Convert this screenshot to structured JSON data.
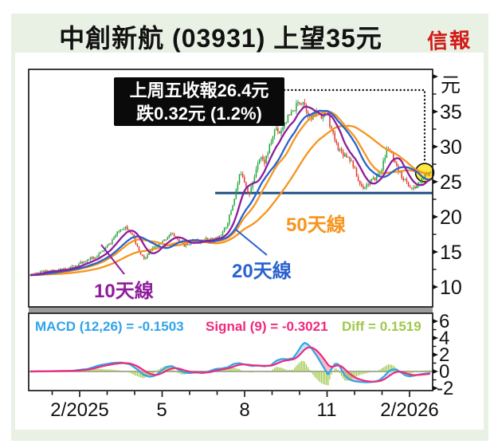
{
  "title": "中創新航 (03931) 上望35元",
  "brand": "信報",
  "annotation": {
    "line1": "上周五收報26.4元",
    "line2": "跌0.32元 (1.2%)"
  },
  "ma_labels": {
    "ma10": "10天線",
    "ma20": "20天線",
    "ma50": "50天線"
  },
  "macd_legend": {
    "macd": "MACD (12,26) = -0.1503",
    "signal": "Signal (9) = -0.3021",
    "diff": "Diff = 0.1519"
  },
  "axes": {
    "price": {
      "unit": "元",
      "ticks": [
        "35",
        "30",
        "25",
        "20",
        "15",
        "10"
      ]
    },
    "macd": {
      "ticks": [
        "6",
        "4",
        "2",
        "0",
        "-2"
      ]
    },
    "x": {
      "ticks": [
        "2/2025",
        "5",
        "8",
        "11",
        "2/2026"
      ]
    }
  },
  "colors": {
    "up": "#22a53c",
    "down": "#e03a2e",
    "ma10": "#8e1d9b",
    "ma20": "#2a62cf",
    "ma50": "#f7941d",
    "support": "#1c4e80",
    "macd_line": "#2fa4ea",
    "signal_line": "#ee2a7b",
    "diff_bar": "#9fc84b",
    "fill_up": "#aee1f7",
    "fill_down": "#f6a8c0",
    "annotation_bg": "#0a0a0a",
    "annotation_text": "#ffffff",
    "page_green": "#e9f1e5",
    "brand_red": "#d11a17",
    "highlight": "#ffe93c",
    "axis": "#111111",
    "gray_bar": "#9b9b9b",
    "zero_line": "#8a8a8a"
  },
  "chart_data": [
    {
      "type": "candlestick",
      "name": "中創新航 03931 日線",
      "y_unit": "元",
      "y_ticks": [
        35,
        30,
        25,
        20,
        15,
        10
      ],
      "x_tick_labels": [
        "2/2025",
        "5",
        "8",
        "11",
        "2/2026"
      ],
      "x_months_start": "2/2025",
      "last": {
        "close": 26.4,
        "change": -0.32,
        "change_pct": -1.2,
        "target": 35
      },
      "support_line": {
        "price": 23.4,
        "start_month": 4.93,
        "end_month": 12.85
      },
      "highlight_marker": {
        "month": 12.55,
        "price": 26.3
      },
      "moving_averages": [
        {
          "window": 10,
          "label": "10天線"
        },
        {
          "window": 20,
          "label": "20天線"
        },
        {
          "window": 50,
          "label": "50天線"
        }
      ],
      "price_keypoints": [
        [
          -1.8,
          11.7
        ],
        [
          -1.51,
          12.0
        ],
        [
          -1.22,
          12.3
        ],
        [
          -0.93,
          12.2
        ],
        [
          -0.64,
          12.5
        ],
        [
          -0.35,
          12.8
        ],
        [
          -0.06,
          13.2
        ],
        [
          0.23,
          13.8
        ],
        [
          0.52,
          14.2
        ],
        [
          0.81,
          15.0
        ],
        [
          1.1,
          16.2
        ],
        [
          1.33,
          17.5
        ],
        [
          1.54,
          18.4
        ],
        [
          1.68,
          18.6
        ],
        [
          1.86,
          17.8
        ],
        [
          2.03,
          16.2
        ],
        [
          2.2,
          14.6
        ],
        [
          2.38,
          13.9
        ],
        [
          2.55,
          15.0
        ],
        [
          2.75,
          15.7
        ],
        [
          2.96,
          16.2
        ],
        [
          3.13,
          16.9
        ],
        [
          3.3,
          17.6
        ],
        [
          3.48,
          17.2
        ],
        [
          3.65,
          16.3
        ],
        [
          3.83,
          15.9
        ],
        [
          4.0,
          16.3
        ],
        [
          4.17,
          16.7
        ],
        [
          4.35,
          16.4
        ],
        [
          4.52,
          16.8
        ],
        [
          4.7,
          16.9
        ],
        [
          4.87,
          16.8
        ],
        [
          5.04,
          17.1
        ],
        [
          5.22,
          17.8
        ],
        [
          5.39,
          19.3
        ],
        [
          5.57,
          21.8
        ],
        [
          5.74,
          24.6
        ],
        [
          5.88,
          26.6
        ],
        [
          6.03,
          24.8
        ],
        [
          6.17,
          23.2
        ],
        [
          6.32,
          25.0
        ],
        [
          6.46,
          27.8
        ],
        [
          6.58,
          28.8
        ],
        [
          6.7,
          27.6
        ],
        [
          6.84,
          29.2
        ],
        [
          6.99,
          31.0
        ],
        [
          7.13,
          32.8
        ],
        [
          7.28,
          32.0
        ],
        [
          7.42,
          33.2
        ],
        [
          7.59,
          34.2
        ],
        [
          7.77,
          35.0
        ],
        [
          7.94,
          36.2
        ],
        [
          8.12,
          36.6
        ],
        [
          8.26,
          35.2
        ],
        [
          8.41,
          33.8
        ],
        [
          8.55,
          34.6
        ],
        [
          8.7,
          35.0
        ],
        [
          8.84,
          34.2
        ],
        [
          8.99,
          35.2
        ],
        [
          9.1,
          33.2
        ],
        [
          9.22,
          31.6
        ],
        [
          9.33,
          30.4
        ],
        [
          9.45,
          29.6
        ],
        [
          9.59,
          29.0
        ],
        [
          9.74,
          28.7
        ],
        [
          9.91,
          27.8
        ],
        [
          10.06,
          26.0
        ],
        [
          10.17,
          24.8
        ],
        [
          10.29,
          24.2
        ],
        [
          10.41,
          24.5
        ],
        [
          10.52,
          24.8
        ],
        [
          10.67,
          25.2
        ],
        [
          10.81,
          25.8
        ],
        [
          10.96,
          26.6
        ],
        [
          11.07,
          28.0
        ],
        [
          11.19,
          29.8
        ],
        [
          11.3,
          29.4
        ],
        [
          11.42,
          27.8
        ],
        [
          11.54,
          26.8
        ],
        [
          11.68,
          26.0
        ],
        [
          11.83,
          25.2
        ],
        [
          11.97,
          24.4
        ],
        [
          12.12,
          23.9
        ],
        [
          12.23,
          24.3
        ],
        [
          12.35,
          24.8
        ],
        [
          12.46,
          25.4
        ],
        [
          12.58,
          26.0
        ],
        [
          12.7,
          26.3
        ],
        [
          12.81,
          26.4
        ]
      ],
      "volatility_keypoints": [
        [
          -1.8,
          0.35
        ],
        [
          1.4,
          0.5
        ],
        [
          2.3,
          0.55
        ],
        [
          3.8,
          0.4
        ],
        [
          5.2,
          0.45
        ],
        [
          5.8,
          0.95
        ],
        [
          7.2,
          0.9
        ],
        [
          8.3,
          1.0
        ],
        [
          9.3,
          0.85
        ],
        [
          10.4,
          0.7
        ],
        [
          11.2,
          0.85
        ],
        [
          12.2,
          0.6
        ],
        [
          12.8,
          0.4
        ]
      ]
    },
    {
      "type": "line+histogram",
      "name": "MACD",
      "values": {
        "macd": -0.1503,
        "signal": -0.3021,
        "diff": 0.1519
      },
      "params": {
        "fast": 12,
        "slow": 26,
        "signal": 9
      },
      "y_ticks": [
        6,
        4,
        2,
        0,
        -2
      ],
      "macd_keypoints": [
        [
          -1.8,
          0.0
        ],
        [
          -0.29,
          0.08
        ],
        [
          0.29,
          0.3
        ],
        [
          0.72,
          0.75
        ],
        [
          1.16,
          1.0
        ],
        [
          1.51,
          1.08
        ],
        [
          1.83,
          0.85
        ],
        [
          2.09,
          0.25
        ],
        [
          2.32,
          -0.4
        ],
        [
          2.55,
          -0.65
        ],
        [
          2.75,
          -0.5
        ],
        [
          2.96,
          0.05
        ],
        [
          3.16,
          0.55
        ],
        [
          3.36,
          0.65
        ],
        [
          3.57,
          0.25
        ],
        [
          3.77,
          -0.1
        ],
        [
          4.0,
          -0.2
        ],
        [
          4.23,
          -0.12
        ],
        [
          4.46,
          -0.2
        ],
        [
          4.7,
          0.0
        ],
        [
          4.93,
          0.3
        ],
        [
          5.16,
          0.35
        ],
        [
          5.39,
          0.5
        ],
        [
          5.59,
          0.9
        ],
        [
          5.8,
          1.0
        ],
        [
          6.03,
          0.8
        ],
        [
          6.26,
          0.65
        ],
        [
          6.49,
          0.7
        ],
        [
          6.72,
          0.62
        ],
        [
          6.96,
          0.75
        ],
        [
          7.16,
          1.3
        ],
        [
          7.36,
          1.5
        ],
        [
          7.57,
          1.45
        ],
        [
          7.77,
          1.6
        ],
        [
          7.94,
          2.4
        ],
        [
          8.09,
          3.2
        ],
        [
          8.2,
          3.45
        ],
        [
          8.35,
          3.1
        ],
        [
          8.49,
          2.5
        ],
        [
          8.64,
          1.8
        ],
        [
          8.78,
          1.0
        ],
        [
          8.93,
          0.2
        ],
        [
          9.04,
          -0.35
        ],
        [
          9.16,
          0.3
        ],
        [
          9.28,
          0.9
        ],
        [
          9.39,
          0.95
        ],
        [
          9.51,
          0.3
        ],
        [
          9.65,
          -0.5
        ],
        [
          9.8,
          -0.95
        ],
        [
          9.97,
          -1.15
        ],
        [
          10.2,
          -1.25
        ],
        [
          10.43,
          -1.3
        ],
        [
          10.67,
          -1.25
        ],
        [
          10.9,
          -1.05
        ],
        [
          11.1,
          -0.5
        ],
        [
          11.25,
          0.05
        ],
        [
          11.39,
          0.27
        ],
        [
          11.54,
          0.2
        ],
        [
          11.68,
          -0.1
        ],
        [
          11.83,
          -0.45
        ],
        [
          12.0,
          -0.6
        ],
        [
          12.17,
          -0.5
        ],
        [
          12.35,
          -0.35
        ],
        [
          12.52,
          -0.28
        ],
        [
          12.67,
          -0.22
        ],
        [
          12.81,
          -0.15
        ]
      ]
    }
  ]
}
